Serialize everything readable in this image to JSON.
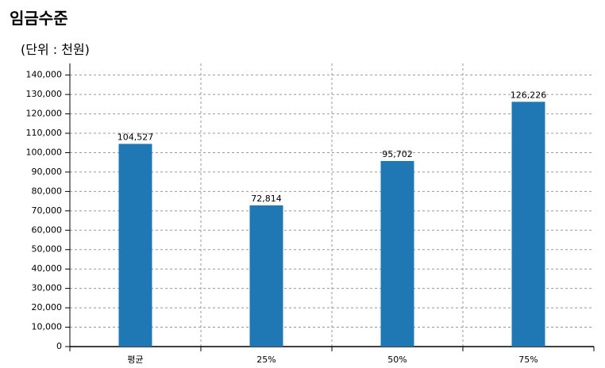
{
  "chart_data": {
    "type": "bar",
    "title": "임금수준",
    "subtitle": "(단위 : 천원)",
    "categories": [
      "평균",
      "25%",
      "50%",
      "75%"
    ],
    "values": [
      104527,
      72814,
      95702,
      126226
    ],
    "value_labels": [
      "104,527",
      "72,814",
      "95,702",
      "126,226"
    ],
    "color": "#1f77b4",
    "ylim": [
      0,
      146000
    ],
    "yticks": [
      0,
      {
        "value": 10000,
        "label": "10,000"
      },
      {
        "value": 20000,
        "label": "20,000"
      },
      {
        "value": 30000,
        "label": "30,000"
      },
      {
        "value": 40000,
        "label": "40,000"
      },
      {
        "value": 50000,
        "label": "50,000"
      },
      {
        "value": 60000,
        "label": "60,000"
      },
      {
        "value": 70000,
        "label": "70,000"
      },
      {
        "value": 80000,
        "label": "80,000"
      },
      {
        "value": 90000,
        "label": "90,000"
      },
      {
        "value": 100000,
        "label": "100,000"
      },
      {
        "value": 110000,
        "label": "110,000"
      },
      {
        "value": 120000,
        "label": "120,000"
      },
      {
        "value": 130000,
        "label": "130,000"
      },
      {
        "value": 140000,
        "label": "140,000"
      }
    ],
    "grid": true
  }
}
